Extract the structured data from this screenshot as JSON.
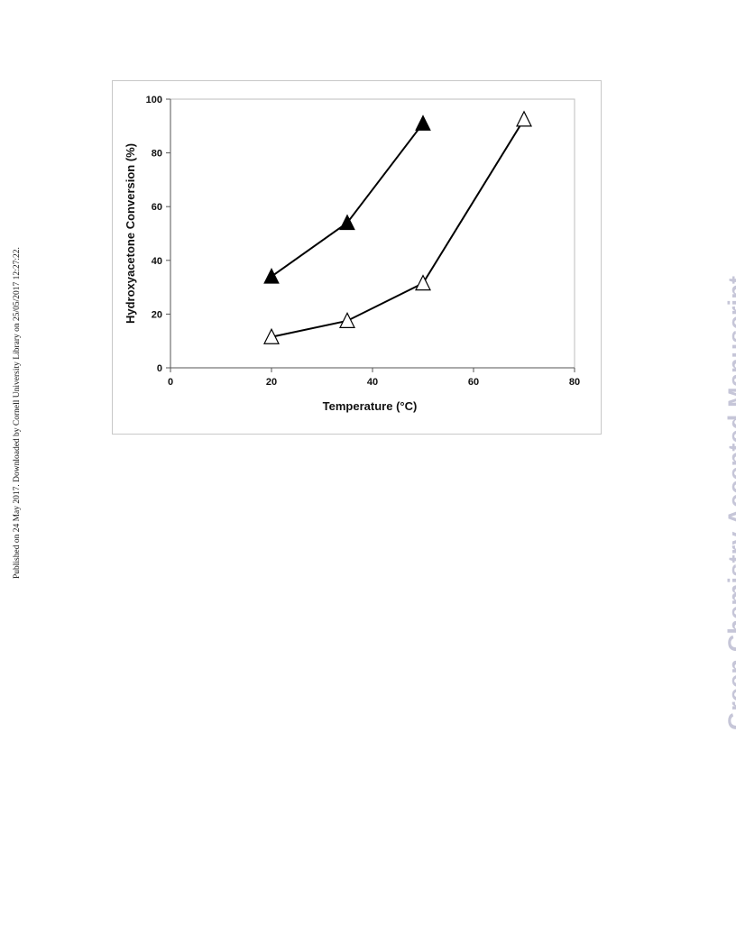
{
  "side_note": "Published on 24 May 2017. Downloaded by Cornell University Library on 25/05/2017 12:27:22.",
  "watermark": "Green Chemistry Accepted Manuscript",
  "chart_data": {
    "type": "line",
    "title": "",
    "xlabel": "Temperature (°C)",
    "ylabel": "Hydroxyacetone Conversion (%)",
    "xlim": [
      0,
      80
    ],
    "ylim": [
      0,
      100
    ],
    "xticks": [
      0,
      20,
      40,
      60,
      80
    ],
    "yticks": [
      0,
      20,
      40,
      60,
      80,
      100
    ],
    "grid": false,
    "legend": "none",
    "series": [
      {
        "marker": "filled-triangle",
        "color": "#000000",
        "x": [
          20,
          35,
          50
        ],
        "y": [
          34,
          54,
          91
        ]
      },
      {
        "marker": "open-triangle",
        "color": "#000000",
        "x": [
          20,
          35,
          50,
          70
        ],
        "y": [
          11.5,
          17.5,
          31.5,
          92.5
        ]
      }
    ]
  }
}
